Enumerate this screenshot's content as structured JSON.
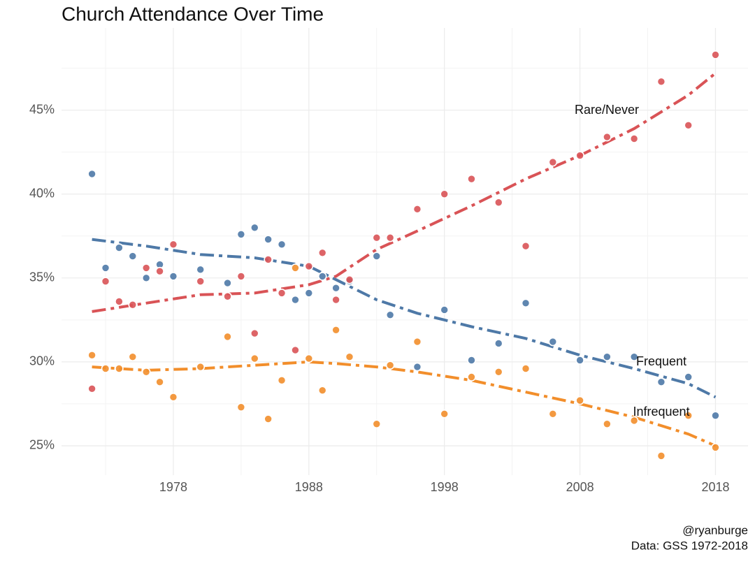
{
  "chart_data": {
    "type": "scatter",
    "title": "Church Attendance Over Time",
    "caption": [
      "@ryanburge",
      "Data: GSS 1972-2018"
    ],
    "x": [
      1972,
      1973,
      1974,
      1975,
      1976,
      1977,
      1978,
      1980,
      1982,
      1983,
      1984,
      1985,
      1986,
      1987,
      1988,
      1989,
      1990,
      1991,
      1993,
      1994,
      1996,
      1998,
      2000,
      2002,
      2004,
      2006,
      2008,
      2010,
      2012,
      2014,
      2016,
      2018
    ],
    "trend_x": [
      1972,
      1976,
      1980,
      1984,
      1988,
      1990,
      1993,
      1996,
      2000,
      2004,
      2008,
      2012,
      2016,
      2018
    ],
    "series": [
      {
        "name": "Frequent",
        "color": "#4e79a7",
        "values": [
          41.2,
          35.6,
          36.8,
          36.3,
          35.0,
          35.8,
          35.1,
          35.5,
          34.7,
          37.6,
          38.0,
          37.3,
          37.0,
          33.7,
          34.1,
          35.1,
          34.4,
          34.8,
          36.3,
          32.8,
          29.7,
          33.1,
          30.1,
          31.1,
          33.5,
          31.2,
          30.1,
          30.3,
          30.3,
          28.8,
          29.1,
          26.8
        ],
        "trend": [
          37.3,
          36.9,
          36.4,
          36.2,
          35.7,
          34.9,
          33.7,
          32.9,
          32.1,
          31.4,
          30.4,
          29.6,
          28.7,
          27.9
        ]
      },
      {
        "name": "Rare/Never",
        "color": "#d95356",
        "values": [
          28.4,
          34.8,
          33.6,
          33.4,
          35.6,
          35.4,
          37.0,
          34.8,
          33.9,
          35.1,
          31.7,
          36.1,
          34.1,
          30.7,
          35.7,
          36.5,
          33.7,
          34.9,
          37.4,
          37.4,
          39.1,
          40.0,
          40.9,
          39.5,
          36.9,
          41.9,
          42.3,
          43.4,
          43.3,
          46.7,
          44.1,
          48.3
        ],
        "trend": [
          33.0,
          33.5,
          34.0,
          34.1,
          34.6,
          35.1,
          36.7,
          37.8,
          39.3,
          40.9,
          42.3,
          43.9,
          45.9,
          47.2
        ]
      },
      {
        "name": "Infrequent",
        "color": "#f28e2b",
        "values": [
          30.4,
          29.6,
          29.6,
          30.3,
          29.4,
          28.8,
          27.9,
          29.7,
          31.5,
          27.3,
          30.2,
          26.6,
          28.9,
          35.6,
          30.2,
          28.3,
          31.9,
          30.3,
          26.3,
          29.8,
          31.2,
          26.9,
          29.1,
          29.4,
          29.6,
          26.9,
          27.7,
          26.3,
          26.5,
          24.4,
          26.8,
          24.9
        ],
        "trend": [
          29.7,
          29.5,
          29.6,
          29.8,
          30.0,
          29.9,
          29.7,
          29.4,
          28.9,
          28.2,
          27.5,
          26.7,
          25.7,
          25.0
        ]
      }
    ],
    "xlim": [
      1969.75,
      2020.4
    ],
    "xticks": [
      1978,
      1988,
      1998,
      2008,
      2018
    ],
    "ylim": [
      23.25,
      49.9
    ],
    "yticks": [
      {
        "value": 25,
        "label": "25%"
      },
      {
        "value": 30,
        "label": "30%"
      },
      {
        "value": 35,
        "label": "35%"
      },
      {
        "value": 40,
        "label": "40%"
      },
      {
        "value": 45,
        "label": "45%"
      }
    ],
    "grid": true
  }
}
